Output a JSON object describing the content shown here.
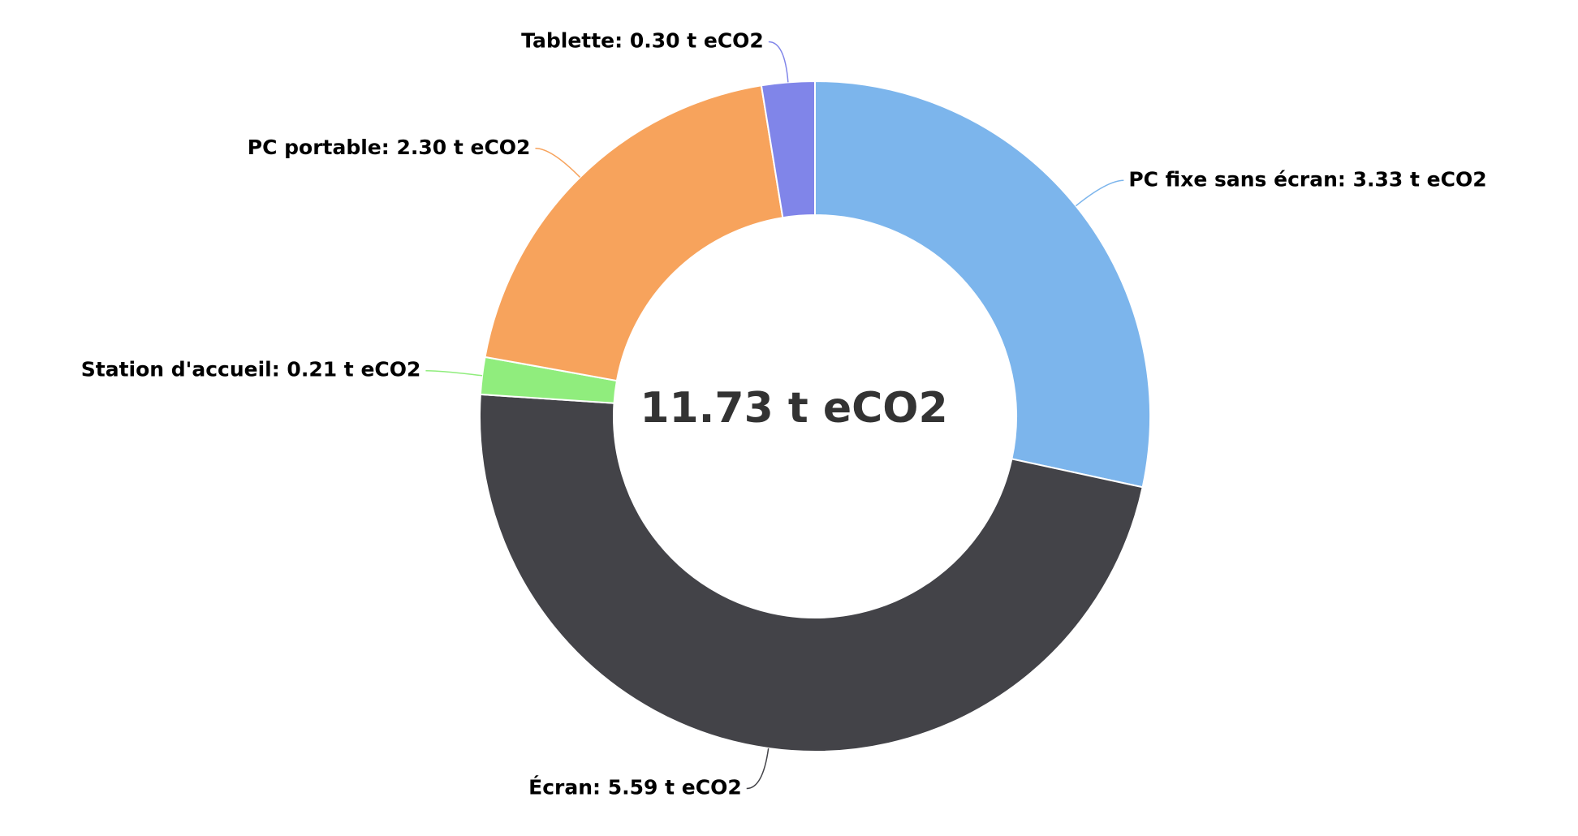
{
  "chart_data": {
    "type": "pie",
    "center_label": "11.73 t eCO2",
    "values": [
      3.33,
      5.59,
      0.21,
      2.3,
      0.3
    ],
    "value_labels": [
      "PC fixe sans écran: 3.33 t eCO2",
      "Écran: 5.59 t eCO2",
      "Station d'accueil: 0.21 t eCO2",
      "PC portable: 2.30 t eCO2",
      "Tablette: 0.30 t eCO2"
    ],
    "colors": [
      "#7cb5ec",
      "#434348",
      "#90ed7d",
      "#f7a35c",
      "#8085e9"
    ]
  }
}
